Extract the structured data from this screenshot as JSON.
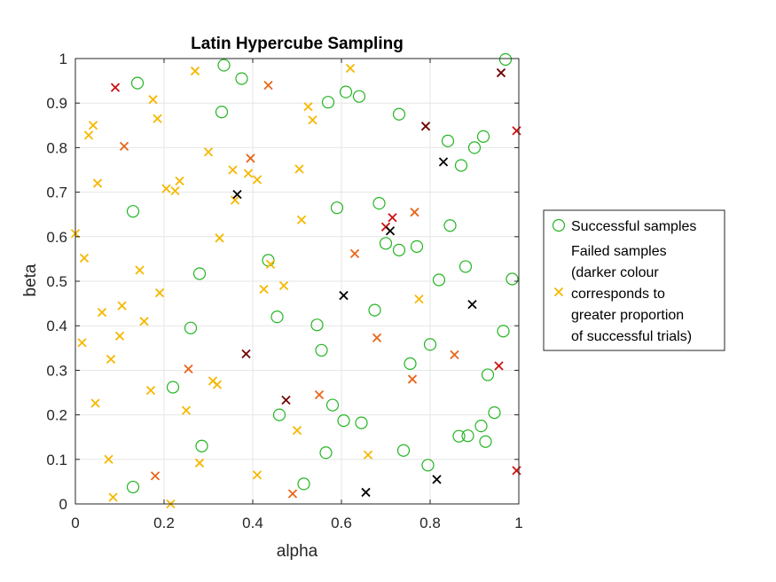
{
  "chart_data": {
    "type": "scatter",
    "title": "Latin Hypercube Sampling",
    "xlabel": "alpha",
    "ylabel": "beta",
    "xlim": [
      0,
      1
    ],
    "ylim": [
      0,
      1
    ],
    "grid": true,
    "legend_position": "right-outside",
    "x_ticks": [
      0,
      0.2,
      0.4,
      0.6,
      0.8,
      1
    ],
    "x_tick_labels": [
      "0",
      "0.2",
      "0.4",
      "0.6",
      "0.8",
      "1"
    ],
    "y_ticks": [
      0,
      0.1,
      0.2,
      0.3,
      0.4,
      0.5,
      0.6,
      0.7,
      0.8,
      0.9,
      1
    ],
    "y_tick_labels": [
      "0",
      "0.1",
      "0.2",
      "0.3",
      "0.4",
      "0.5",
      "0.6",
      "0.7",
      "0.8",
      "0.9",
      "1"
    ],
    "legend": {
      "successful_label": "Successful samples",
      "failed_lines": [
        "Failed samples",
        "(darker colour",
        "corresponds to",
        "greater proportion",
        "of successful trials)"
      ]
    },
    "colors": {
      "success": "#22b522",
      "fail_yellow": "#f5b800",
      "fail_orange": "#e8661a",
      "fail_red": "#cc1010",
      "fail_darkred": "#700000",
      "fail_black": "#000000",
      "grid": "#e6e6e6",
      "axis": "#262626"
    },
    "series": [
      {
        "marker": "circle",
        "color_key": "success",
        "points": [
          [
            0.14,
            0.945
          ],
          [
            0.335,
            0.985
          ],
          [
            0.375,
            0.955
          ],
          [
            0.33,
            0.88
          ],
          [
            0.57,
            0.902
          ],
          [
            0.61,
            0.925
          ],
          [
            0.64,
            0.915
          ],
          [
            0.73,
            0.875
          ],
          [
            0.84,
            0.815
          ],
          [
            0.87,
            0.76
          ],
          [
            0.9,
            0.8
          ],
          [
            0.92,
            0.825
          ],
          [
            0.97,
            0.998
          ],
          [
            0.13,
            0.657
          ],
          [
            0.59,
            0.665
          ],
          [
            0.685,
            0.675
          ],
          [
            0.7,
            0.585
          ],
          [
            0.73,
            0.57
          ],
          [
            0.77,
            0.578
          ],
          [
            0.845,
            0.625
          ],
          [
            0.28,
            0.517
          ],
          [
            0.435,
            0.547
          ],
          [
            0.82,
            0.503
          ],
          [
            0.88,
            0.533
          ],
          [
            0.985,
            0.505
          ],
          [
            0.455,
            0.42
          ],
          [
            0.26,
            0.395
          ],
          [
            0.545,
            0.402
          ],
          [
            0.675,
            0.435
          ],
          [
            0.555,
            0.345
          ],
          [
            0.8,
            0.358
          ],
          [
            0.965,
            0.388
          ],
          [
            0.755,
            0.315
          ],
          [
            0.93,
            0.29
          ],
          [
            0.22,
            0.262
          ],
          [
            0.46,
            0.2
          ],
          [
            0.58,
            0.222
          ],
          [
            0.605,
            0.187
          ],
          [
            0.645,
            0.182
          ],
          [
            0.285,
            0.13
          ],
          [
            0.565,
            0.115
          ],
          [
            0.74,
            0.12
          ],
          [
            0.795,
            0.087
          ],
          [
            0.865,
            0.152
          ],
          [
            0.885,
            0.153
          ],
          [
            0.915,
            0.175
          ],
          [
            0.925,
            0.14
          ],
          [
            0.945,
            0.205
          ],
          [
            0.13,
            0.038
          ],
          [
            0.515,
            0.045
          ]
        ]
      },
      {
        "marker": "x",
        "color_key": "fail_yellow",
        "points": [
          [
            0.175,
            0.908
          ],
          [
            0.04,
            0.85
          ],
          [
            0.03,
            0.828
          ],
          [
            0.185,
            0.865
          ],
          [
            0.27,
            0.972
          ],
          [
            0.62,
            0.978
          ],
          [
            0.525,
            0.892
          ],
          [
            0.535,
            0.862
          ],
          [
            0.3,
            0.79
          ],
          [
            0.05,
            0.72
          ],
          [
            0.205,
            0.708
          ],
          [
            0.225,
            0.703
          ],
          [
            0.235,
            0.725
          ],
          [
            0.355,
            0.75
          ],
          [
            0.36,
            0.682
          ],
          [
            0.39,
            0.742
          ],
          [
            0.41,
            0.728
          ],
          [
            0.505,
            0.752
          ],
          [
            0.0,
            0.607
          ],
          [
            0.325,
            0.597
          ],
          [
            0.51,
            0.638
          ],
          [
            0.02,
            0.552
          ],
          [
            0.145,
            0.525
          ],
          [
            0.44,
            0.538
          ],
          [
            0.425,
            0.482
          ],
          [
            0.47,
            0.49
          ],
          [
            0.06,
            0.43
          ],
          [
            0.105,
            0.445
          ],
          [
            0.19,
            0.474
          ],
          [
            0.155,
            0.41
          ],
          [
            0.775,
            0.46
          ],
          [
            0.015,
            0.362
          ],
          [
            0.1,
            0.377
          ],
          [
            0.08,
            0.325
          ],
          [
            0.31,
            0.276
          ],
          [
            0.32,
            0.268
          ],
          [
            0.17,
            0.255
          ],
          [
            0.045,
            0.226
          ],
          [
            0.25,
            0.21
          ],
          [
            0.5,
            0.165
          ],
          [
            0.075,
            0.1
          ],
          [
            0.28,
            0.092
          ],
          [
            0.66,
            0.11
          ],
          [
            0.41,
            0.065
          ],
          [
            0.085,
            0.015
          ],
          [
            0.215,
            0.0
          ]
        ]
      },
      {
        "marker": "x",
        "color_key": "fail_orange",
        "points": [
          [
            0.435,
            0.94
          ],
          [
            0.11,
            0.803
          ],
          [
            0.395,
            0.776
          ],
          [
            0.765,
            0.655
          ],
          [
            0.63,
            0.562
          ],
          [
            0.68,
            0.373
          ],
          [
            0.255,
            0.303
          ],
          [
            0.855,
            0.335
          ],
          [
            0.76,
            0.28
          ],
          [
            0.55,
            0.245
          ],
          [
            0.18,
            0.063
          ],
          [
            0.49,
            0.023
          ]
        ]
      },
      {
        "marker": "x",
        "color_key": "fail_red",
        "points": [
          [
            0.09,
            0.935
          ],
          [
            0.995,
            0.838
          ],
          [
            0.7,
            0.622
          ],
          [
            0.715,
            0.643
          ],
          [
            0.955,
            0.31
          ],
          [
            0.995,
            0.075
          ]
        ]
      },
      {
        "marker": "x",
        "color_key": "fail_darkred",
        "points": [
          [
            0.96,
            0.968
          ],
          [
            0.79,
            0.848
          ],
          [
            0.385,
            0.337
          ],
          [
            0.475,
            0.233
          ]
        ]
      },
      {
        "marker": "x",
        "color_key": "fail_black",
        "points": [
          [
            0.83,
            0.768
          ],
          [
            0.365,
            0.695
          ],
          [
            0.71,
            0.613
          ],
          [
            0.605,
            0.468
          ],
          [
            0.895,
            0.448
          ],
          [
            0.655,
            0.026
          ],
          [
            0.815,
            0.055
          ]
        ]
      }
    ]
  }
}
